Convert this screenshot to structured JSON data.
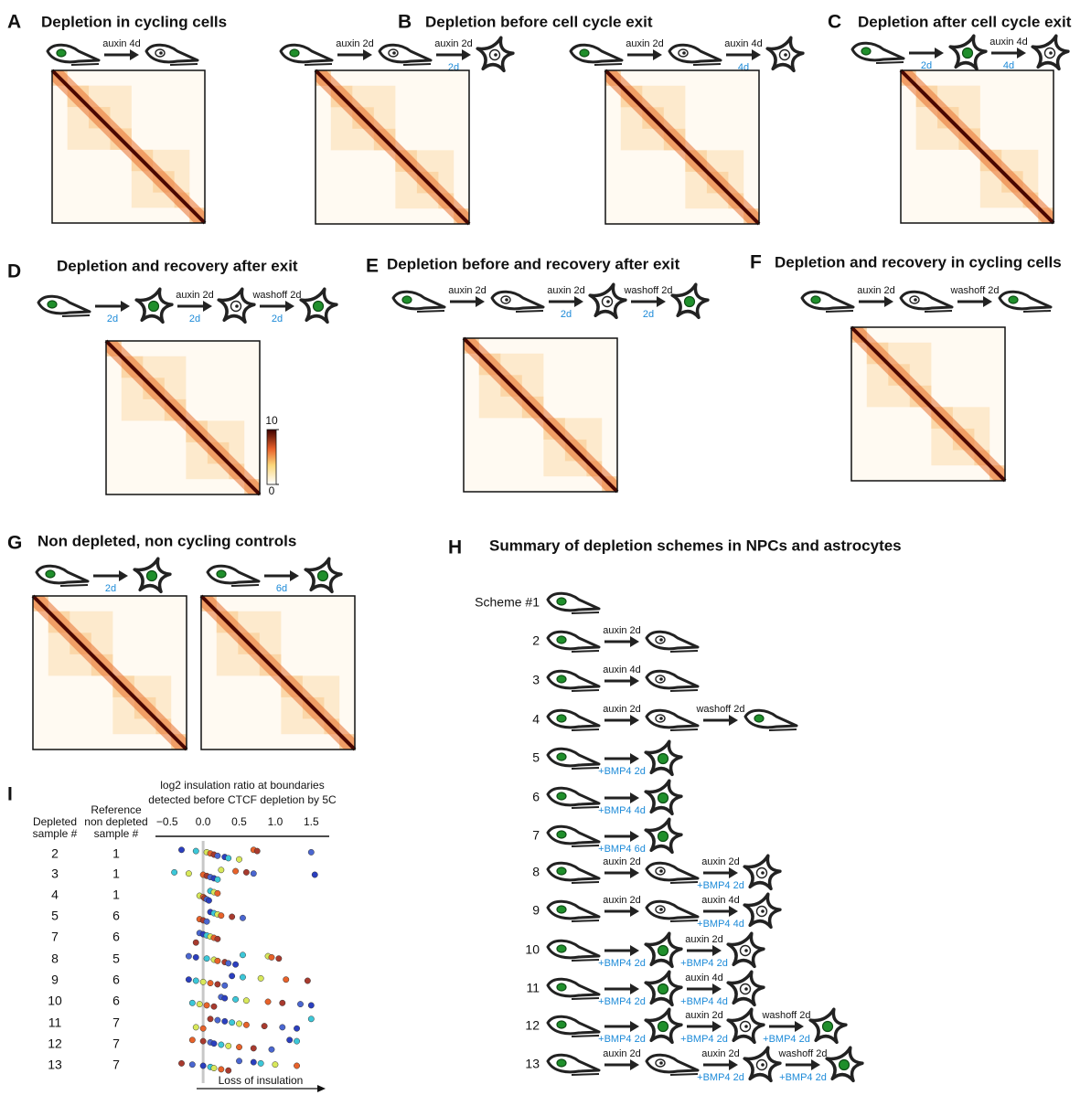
{
  "panels": [
    {
      "letter": "A",
      "title": "Depletion in cycling cells",
      "sequences": [
        {
          "steps": [
            {
              "above": "auxin 4d"
            }
          ]
        }
      ]
    },
    {
      "letter": "B",
      "title": "Depletion before cell cycle exit",
      "sequences": [
        {
          "steps": [
            {
              "above": "auxin 2d"
            },
            {
              "above": "auxin 2d",
              "below": "2d"
            }
          ]
        },
        {
          "steps": [
            {
              "above": "auxin 2d"
            },
            {
              "above": "auxin 4d",
              "below": "4d"
            }
          ]
        }
      ]
    },
    {
      "letter": "C",
      "title": "Depletion after cell cycle exit",
      "sequences": [
        {
          "steps": [
            {
              "below": "2d"
            },
            {
              "above": "auxin 4d",
              "below": "4d"
            }
          ]
        }
      ]
    },
    {
      "letter": "D",
      "title": "Depletion and recovery after exit",
      "sequences": [
        {
          "steps": [
            {
              "below": "2d"
            },
            {
              "above": "auxin 2d",
              "below": "2d"
            },
            {
              "above": "washoff 2d",
              "below": "2d"
            }
          ]
        }
      ]
    },
    {
      "letter": "E",
      "title": "Depletion before and recovery after exit",
      "sequences": [
        {
          "steps": [
            {
              "above": "auxin 2d"
            },
            {
              "above": "auxin 2d",
              "below": "2d"
            },
            {
              "above": "washoff 2d",
              "below": "2d"
            }
          ]
        }
      ]
    },
    {
      "letter": "F",
      "title": "Depletion and recovery in cycling cells",
      "sequences": [
        {
          "steps": [
            {
              "above": "auxin 2d"
            },
            {
              "above": "washoff 2d"
            }
          ]
        }
      ]
    },
    {
      "letter": "G",
      "title": "Non depleted, non cycling controls",
      "sequences": [
        {
          "steps": [
            {
              "below": "2d"
            }
          ]
        },
        {
          "steps": [
            {
              "below": "6d"
            }
          ]
        }
      ]
    }
  ],
  "colorbar": {
    "ticks": [
      0,
      10
    ]
  },
  "summary": {
    "letter": "H",
    "title": "Summary of depletion schemes in NPCs and astrocytes",
    "schemes": [
      {
        "number": "Scheme #1",
        "steps": []
      },
      {
        "number": "2",
        "steps": [
          {
            "above": "auxin 2d"
          }
        ]
      },
      {
        "number": "3",
        "steps": [
          {
            "above": "auxin 4d"
          }
        ]
      },
      {
        "number": "4",
        "steps": [
          {
            "above": "auxin 2d"
          },
          {
            "above": "washoff 2d"
          }
        ]
      },
      {
        "number": "5",
        "steps": [
          {
            "below": "+BMP4 2d"
          }
        ]
      },
      {
        "number": "6",
        "steps": [
          {
            "below": "+BMP4 4d"
          }
        ]
      },
      {
        "number": "7",
        "steps": [
          {
            "below": "+BMP4 6d"
          }
        ]
      },
      {
        "number": "8",
        "steps": [
          {
            "above": "auxin 2d"
          },
          {
            "above": "auxin 2d",
            "below": "+BMP4 2d"
          }
        ]
      },
      {
        "number": "9",
        "steps": [
          {
            "above": "auxin 2d"
          },
          {
            "above": "auxin 4d",
            "below": "+BMP4 4d"
          }
        ]
      },
      {
        "number": "10",
        "steps": [
          {
            "below": "+BMP4 2d"
          },
          {
            "above": "auxin 2d",
            "below": "+BMP4 2d"
          }
        ]
      },
      {
        "number": "11",
        "steps": [
          {
            "below": "+BMP4 2d"
          },
          {
            "above": "auxin 4d",
            "below": "+BMP4 4d"
          }
        ]
      },
      {
        "number": "12",
        "steps": [
          {
            "below": "+BMP4 2d"
          },
          {
            "above": "auxin 2d",
            "below": "+BMP4 2d"
          },
          {
            "above": "washoff 2d",
            "below": "+BMP4 2d"
          }
        ]
      },
      {
        "number": "13",
        "steps": [
          {
            "above": "auxin 2d"
          },
          {
            "above": "auxin 2d",
            "below": "+BMP4 2d"
          },
          {
            "above": "washoff 2d",
            "below": "+BMP4 2d"
          }
        ]
      }
    ]
  },
  "insulation": {
    "letter": "I",
    "axis_title": [
      "log2 insulation ratio at boundaries",
      "detected before CTCF depletion by 5C"
    ],
    "depleted_header": [
      "Depleted",
      "sample #"
    ],
    "reference_header": [
      "Reference",
      "non depleted",
      "sample #"
    ],
    "xlim": [
      -0.7,
      1.75
    ],
    "xticks": [
      {
        "value": -0.5,
        "label": "−0.5"
      },
      {
        "value": 0,
        "label": "0.0"
      },
      {
        "value": 0.5,
        "label": "0.5"
      },
      {
        "value": 1,
        "label": "1.0"
      },
      {
        "value": 1.5,
        "label": "1.5"
      }
    ],
    "x_label": "Loss of insulation",
    "point_colors": [
      "#2b3fbf",
      "#3cc7d8",
      "#d8e85a",
      "#e8622a",
      "#a83a2e",
      "#4a66d0"
    ],
    "rows": [
      {
        "depleted": "2",
        "reference": "1",
        "values": [
          -0.3,
          -0.1,
          0.05,
          0.1,
          0.15,
          0.2,
          0.3,
          0.35,
          0.5,
          0.7,
          0.75,
          1.5
        ]
      },
      {
        "depleted": "3",
        "reference": "1",
        "values": [
          -0.4,
          -0.2,
          0,
          0.05,
          0.1,
          0.15,
          0.2,
          0.25,
          0.45,
          0.6,
          0.7,
          1.55
        ]
      },
      {
        "depleted": "4",
        "reference": "1",
        "values": [
          -0.05,
          0,
          0.02,
          0.05,
          0.08,
          0.1,
          0.15,
          0.2
        ]
      },
      {
        "depleted": "5",
        "reference": "6",
        "values": [
          -0.05,
          0,
          0.05,
          0.1,
          0.15,
          0.2,
          0.25,
          0.4,
          0.55
        ]
      },
      {
        "depleted": "7",
        "reference": "6",
        "values": [
          -0.1,
          -0.05,
          0,
          0.05,
          0.1,
          0.15,
          0.2
        ]
      },
      {
        "depleted": "8",
        "reference": "5",
        "values": [
          -0.2,
          -0.1,
          0.05,
          0.15,
          0.2,
          0.3,
          0.35,
          0.45,
          0.55,
          0.9,
          0.95,
          1.05
        ]
      },
      {
        "depleted": "9",
        "reference": "6",
        "values": [
          -0.2,
          -0.1,
          0,
          0.1,
          0.2,
          0.3,
          0.4,
          0.55,
          0.8,
          1.15,
          1.45
        ]
      },
      {
        "depleted": "10",
        "reference": "6",
        "values": [
          -0.15,
          -0.05,
          0.05,
          0.15,
          0.25,
          0.3,
          0.45,
          0.6,
          0.9,
          1.1,
          1.35,
          1.5
        ]
      },
      {
        "depleted": "11",
        "reference": "7",
        "values": [
          -0.1,
          0,
          0.1,
          0.2,
          0.3,
          0.4,
          0.5,
          0.6,
          0.85,
          1.1,
          1.3,
          1.5
        ]
      },
      {
        "depleted": "12",
        "reference": "7",
        "values": [
          -0.15,
          0,
          0.1,
          0.15,
          0.25,
          0.35,
          0.5,
          0.7,
          0.95,
          1.2,
          1.3
        ]
      },
      {
        "depleted": "13",
        "reference": "7",
        "values": [
          -0.3,
          -0.15,
          0,
          0.1,
          0.15,
          0.25,
          0.35,
          0.5,
          0.7,
          0.8,
          1,
          1.3
        ]
      }
    ]
  }
}
